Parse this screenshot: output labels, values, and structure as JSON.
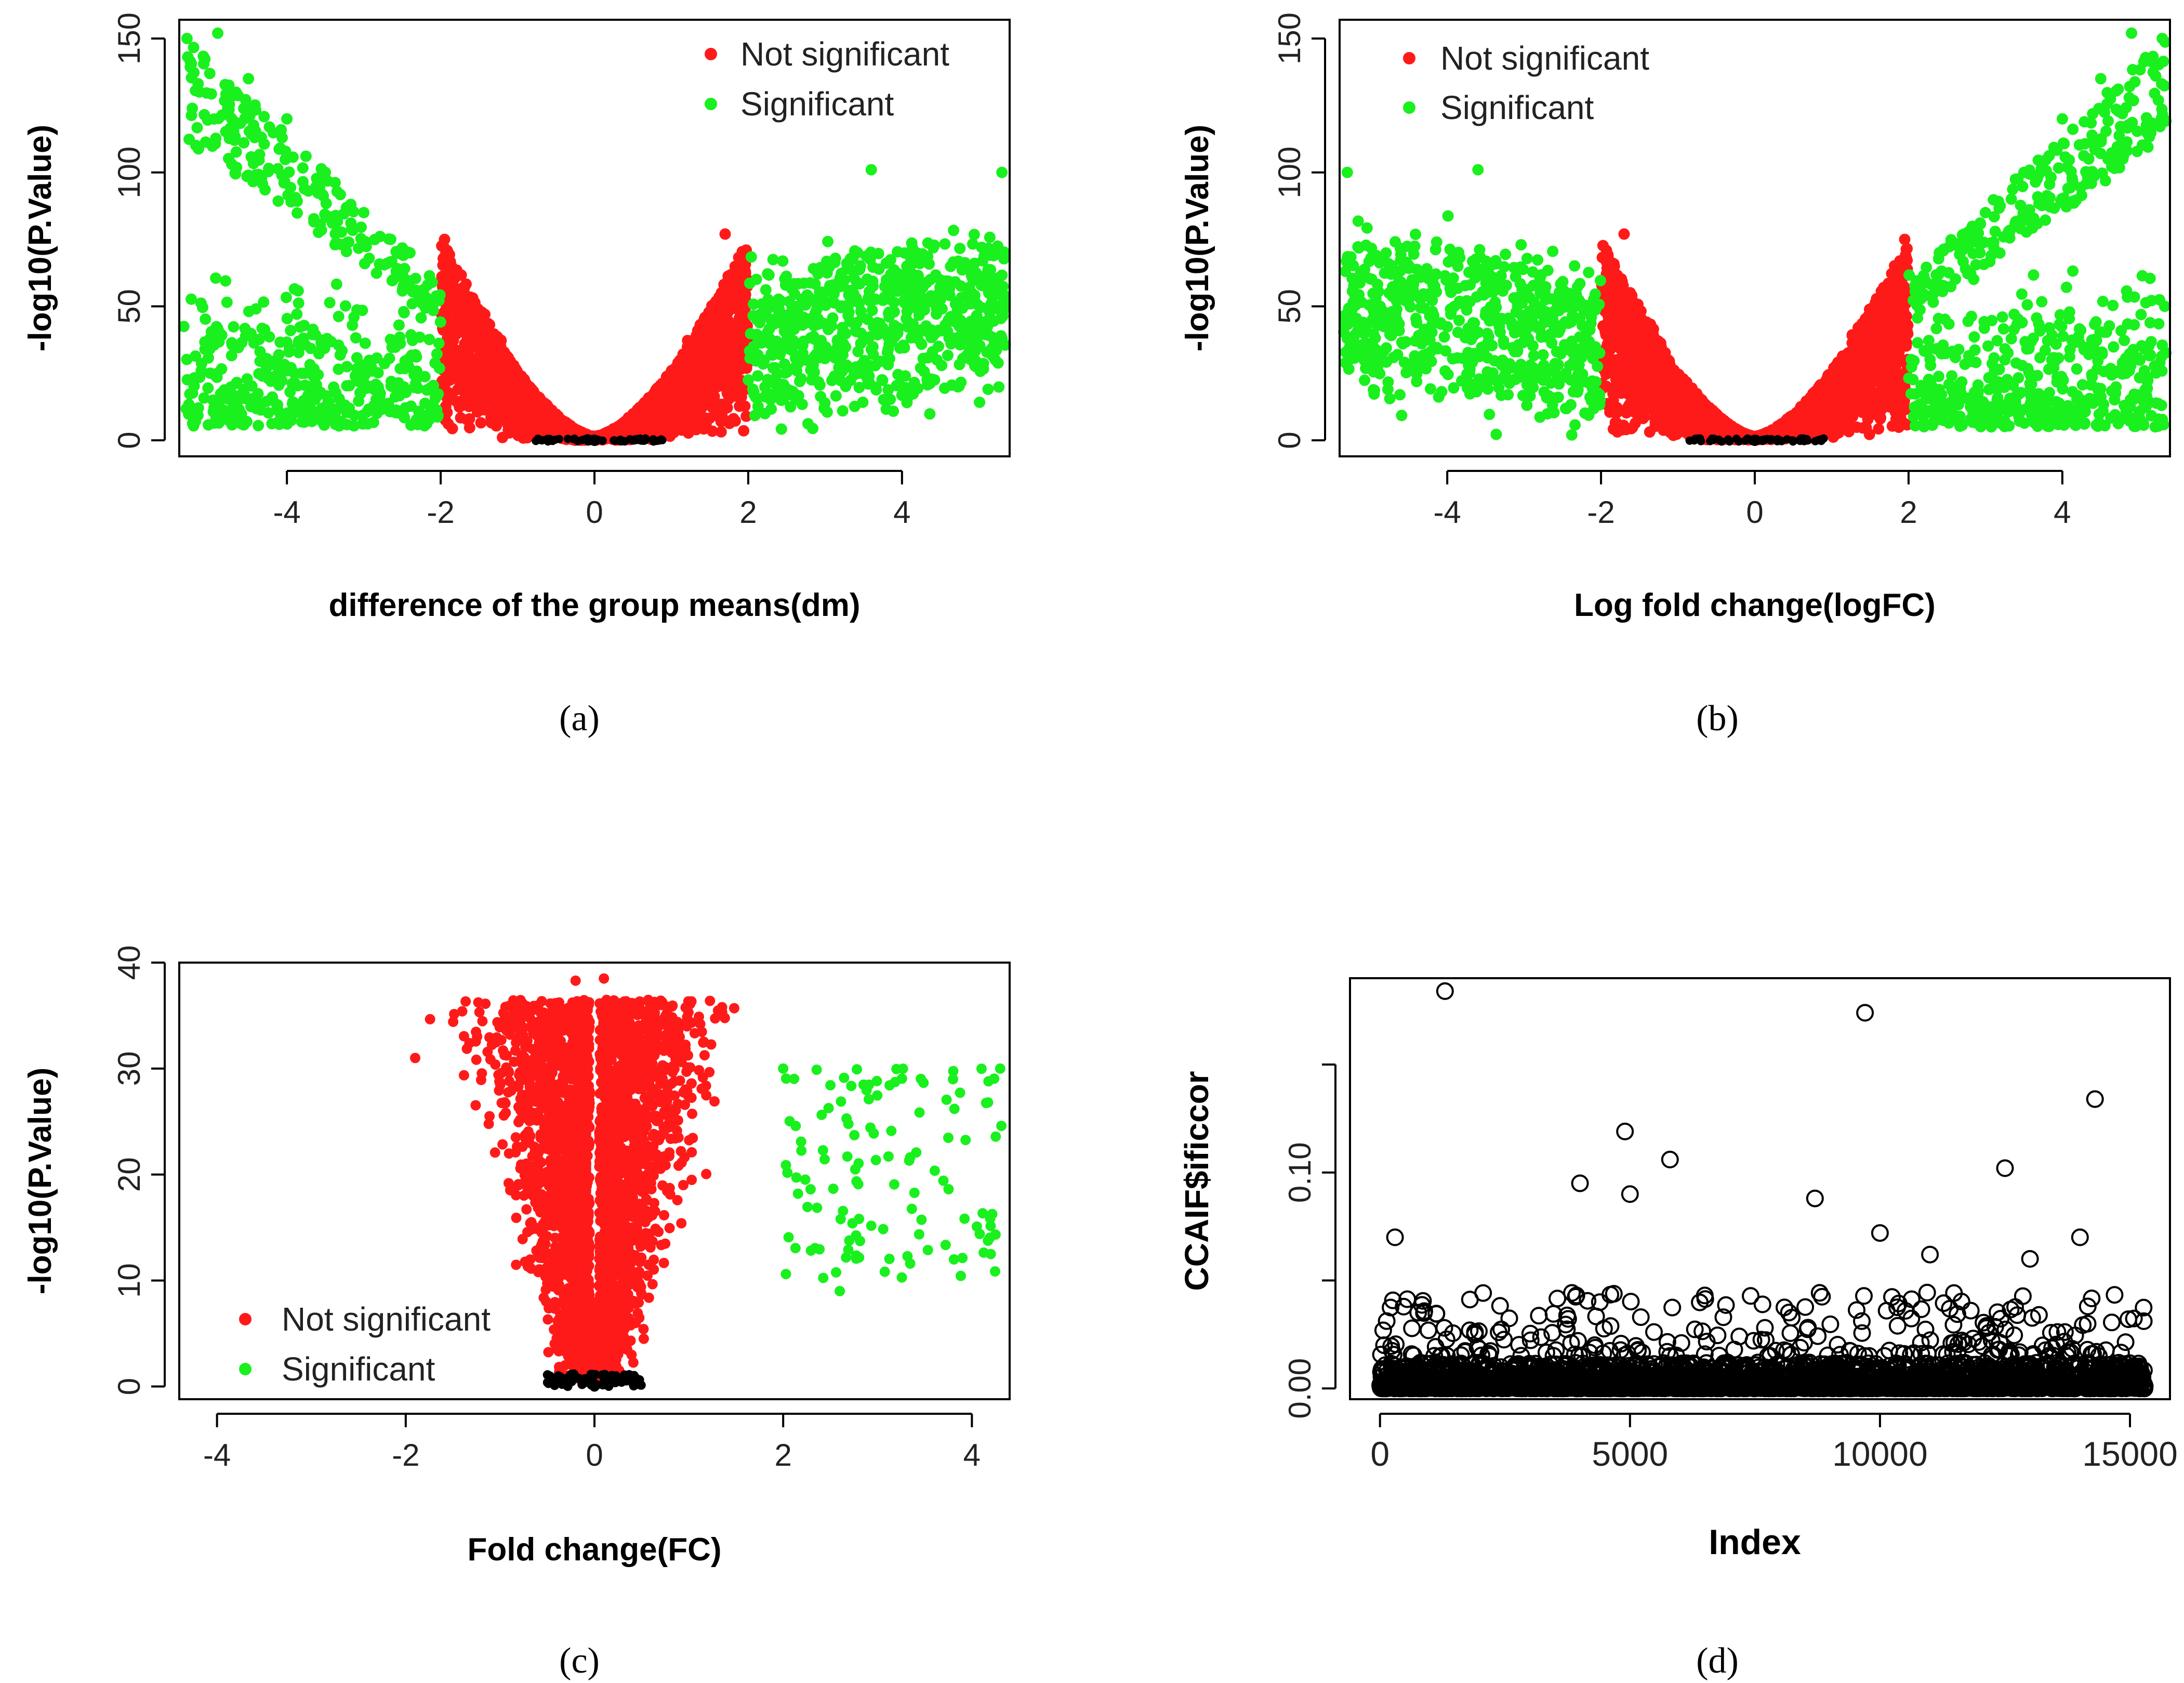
{
  "figure": {
    "panel_labels": [
      "(a)",
      "(b)",
      "(c)",
      "(d)"
    ]
  },
  "legend": {
    "not_significant": "Not significant",
    "significant": "Significant"
  },
  "colors": {
    "not_significant": "#ff1a1a",
    "significant": "#19f01e",
    "near_zero": "#000000",
    "index_points": "#000000"
  },
  "chart_data": [
    {
      "id": "a",
      "type": "scatter",
      "title": "",
      "xlabel": "difference of the group means(dm)",
      "ylabel": "-log10(P.Value)",
      "xlim": [
        -5.4,
        5.4
      ],
      "ylim": [
        -6,
        157
      ],
      "xticks": [
        -4,
        -2,
        0,
        2,
        4
      ],
      "yticks": [
        0,
        50,
        100,
        150
      ],
      "threshold": 2,
      "legend_position": "top-right",
      "series": [
        {
          "name": "Not significant",
          "color": "#ff1a1a",
          "description": "|dm| < 2, -log10(P) rising from ~0 at dm=0 to ~75 at |dm|=2"
        },
        {
          "name": "Significant",
          "color": "#19f01e",
          "description": "|dm| >= 2, -log10(P) from ~5 up to ~150 at dm≈-5"
        }
      ],
      "approx_points": [
        [
          -5.3,
          150
        ],
        [
          -4.9,
          152
        ],
        [
          -4.5,
          135
        ],
        [
          -4,
          120
        ],
        [
          -3.5,
          100
        ],
        [
          -3,
          85
        ],
        [
          -2.4,
          70
        ],
        [
          -1.95,
          75
        ],
        [
          1.7,
          77
        ],
        [
          3.6,
          101
        ],
        [
          5.3,
          100
        ],
        [
          5.3,
          38
        ],
        [
          0,
          0
        ]
      ]
    },
    {
      "id": "b",
      "type": "scatter",
      "title": "",
      "xlabel": "Log fold change(logFC)",
      "ylabel": "-log10(P.Value)",
      "xlim": [
        -5.4,
        5.4
      ],
      "ylim": [
        -6,
        157
      ],
      "xticks": [
        -4,
        -2,
        0,
        2,
        4
      ],
      "yticks": [
        0,
        50,
        100,
        150
      ],
      "threshold": 2,
      "legend_position": "top-left",
      "series": [
        {
          "name": "Not significant",
          "color": "#ff1a1a",
          "description": "|logFC| < 2, -log10(P) rising from ~0 at logFC=0 to ~75 at |logFC|=2"
        },
        {
          "name": "Significant",
          "color": "#19f01e",
          "description": "|logFC| >= 2, -log10(P) from ~5 up to ~150 at logFC≈5"
        }
      ],
      "approx_points": [
        [
          5.3,
          150
        ],
        [
          4.9,
          152
        ],
        [
          4.5,
          135
        ],
        [
          4,
          120
        ],
        [
          3.5,
          100
        ],
        [
          3,
          85
        ],
        [
          2.4,
          70
        ],
        [
          1.95,
          75
        ],
        [
          -1.7,
          77
        ],
        [
          -3.6,
          101
        ],
        [
          -5.3,
          100
        ],
        [
          -5.3,
          38
        ],
        [
          0,
          0
        ]
      ]
    },
    {
      "id": "c",
      "type": "scatter",
      "title": "",
      "xlabel": "Fold change(FC)",
      "ylabel": "-log10(P.Value)",
      "xlim": [
        -4.4,
        4.4
      ],
      "ylim": [
        -1.2,
        40
      ],
      "xticks": [
        -4,
        -2,
        0,
        2,
        4
      ],
      "yticks": [
        0,
        10,
        20,
        30,
        40
      ],
      "threshold": 2,
      "legend_position": "bottom-left",
      "series": [
        {
          "name": "Not significant",
          "color": "#ff1a1a",
          "description": "FC between about -2 and 2, -log10(P) up to ~38"
        },
        {
          "name": "Significant",
          "color": "#19f01e",
          "description": "FC between 2 and 4.3, -log10(P) between ~9 and ~30"
        }
      ],
      "approx_points": [
        [
          -1.9,
          31
        ],
        [
          -0.2,
          38.3
        ],
        [
          0.1,
          38.5
        ],
        [
          0.7,
          36
        ],
        [
          2,
          30
        ],
        [
          2.6,
          9
        ],
        [
          3.8,
          29
        ],
        [
          4.2,
          12.5
        ],
        [
          4.3,
          30
        ],
        [
          0,
          0
        ]
      ]
    },
    {
      "id": "d",
      "type": "scatter",
      "title": "",
      "xlabel": "Index",
      "ylabel": "CCAIF$ificcor",
      "xlim": [
        -600,
        15800
      ],
      "ylim": [
        -0.005,
        0.19
      ],
      "xticks": [
        0,
        5000,
        10000,
        15000
      ],
      "yticks": [
        0,
        0.05,
        0.1,
        0.15
      ],
      "ytick_labels": [
        "0.00",
        "",
        "0.10",
        ""
      ],
      "marker": "open-circle",
      "series": [
        {
          "name": "CCAIF$ificcor",
          "color": "#000000",
          "description": "~15300 values, mostly 0.00–0.03 with sparse outliers up to ~0.18"
        }
      ],
      "outliers": [
        [
          1300,
          0.184
        ],
        [
          9700,
          0.174
        ],
        [
          14300,
          0.134
        ],
        [
          4900,
          0.119
        ],
        [
          5800,
          0.106
        ],
        [
          12500,
          0.102
        ],
        [
          4000,
          0.095
        ],
        [
          8700,
          0.088
        ],
        [
          5000,
          0.09
        ],
        [
          300,
          0.07
        ],
        [
          10000,
          0.072
        ],
        [
          11000,
          0.062
        ],
        [
          13000,
          0.06
        ],
        [
          14000,
          0.07
        ]
      ]
    }
  ]
}
